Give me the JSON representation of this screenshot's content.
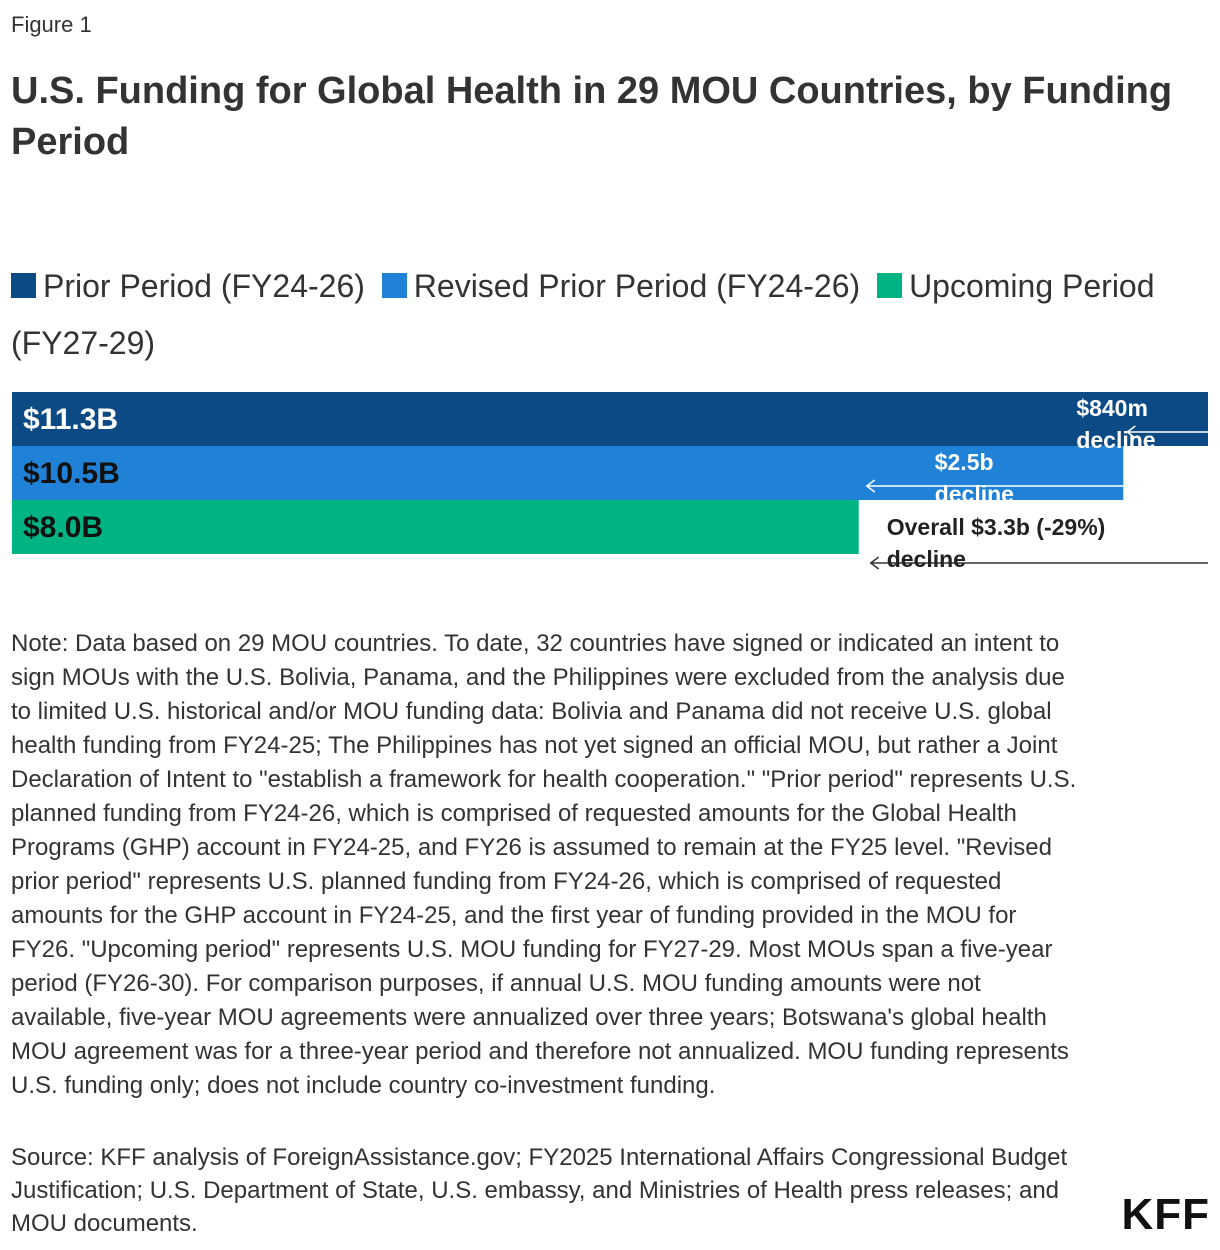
{
  "figure_label": "Figure 1",
  "title": "U.S. Funding for Global Health in 29 MOU Countries, by Funding Period",
  "legend": [
    {
      "label": "Prior Period (FY24-26)",
      "color": "#0b4a84"
    },
    {
      "label": "Revised Prior Period (FY24-26)",
      "color": "#1f82d6"
    },
    {
      "label": "Upcoming Period (FY27-29)",
      "color": "#00b383"
    }
  ],
  "chart_data": {
    "type": "bar",
    "orientation": "horizontal",
    "categories": [
      "Prior Period (FY24-26)",
      "Revised Prior Period (FY24-26)",
      "Upcoming Period (FY27-29)"
    ],
    "values": [
      11.3,
      10.5,
      8.0
    ],
    "value_labels": [
      "$11.3B",
      "$10.5B",
      "$8.0B"
    ],
    "unit": "$B",
    "colors": [
      "#0b4a84",
      "#1f82d6",
      "#00b383"
    ],
    "xlim": [
      0,
      11.3
    ],
    "annotations": [
      {
        "text": "$840m decline",
        "from_value": 11.3,
        "to_value": 10.5
      },
      {
        "text": "$2.5b decline",
        "from_value": 10.5,
        "to_value": 8.0
      },
      {
        "text": "Overall $3.3b (-29%) decline",
        "from_value": 11.3,
        "to_value": 8.0
      }
    ]
  },
  "note": "Note: Data based on 29 MOU countries. To date, 32 countries have signed or indicated an intent to sign MOUs with the U.S. Bolivia, Panama, and the Philippines were excluded from the analysis due to limited U.S. historical and/or MOU funding data: Bolivia and Panama did not receive U.S. global health funding from FY24-25; The Philippines has not yet signed an official MOU, but rather a Joint Declaration of Intent to \"establish a framework for health cooperation.\" \"Prior period\" represents U.S. planned funding from FY24-26, which is comprised of requested amounts for the Global Health Programs (GHP) account in FY24-25, and FY26 is assumed to remain at the FY25 level. \"Revised prior period\" represents U.S. planned funding from FY24-26, which is comprised of requested amounts for the GHP account in FY24-25, and the first year of funding provided in the MOU for FY26. \"Upcoming period\" represents U.S. MOU funding for FY27-29. Most MOUs span a five-year period (FY26-30). For comparison purposes, if annual U.S. MOU funding amounts were not available, five-year MOU agreements were annualized over three years; Botswana's global health MOU agreement was for a three-year period and therefore not annualized. MOU funding represents U.S. funding only; does not include country co-investment funding.",
  "source": "Source: KFF analysis of ForeignAssistance.gov; FY2025 International Affairs Congressional Budget Justification; U.S. Department of State, U.S. embassy, and Ministries of Health press releases; and MOU documents.",
  "logo": "KFF"
}
